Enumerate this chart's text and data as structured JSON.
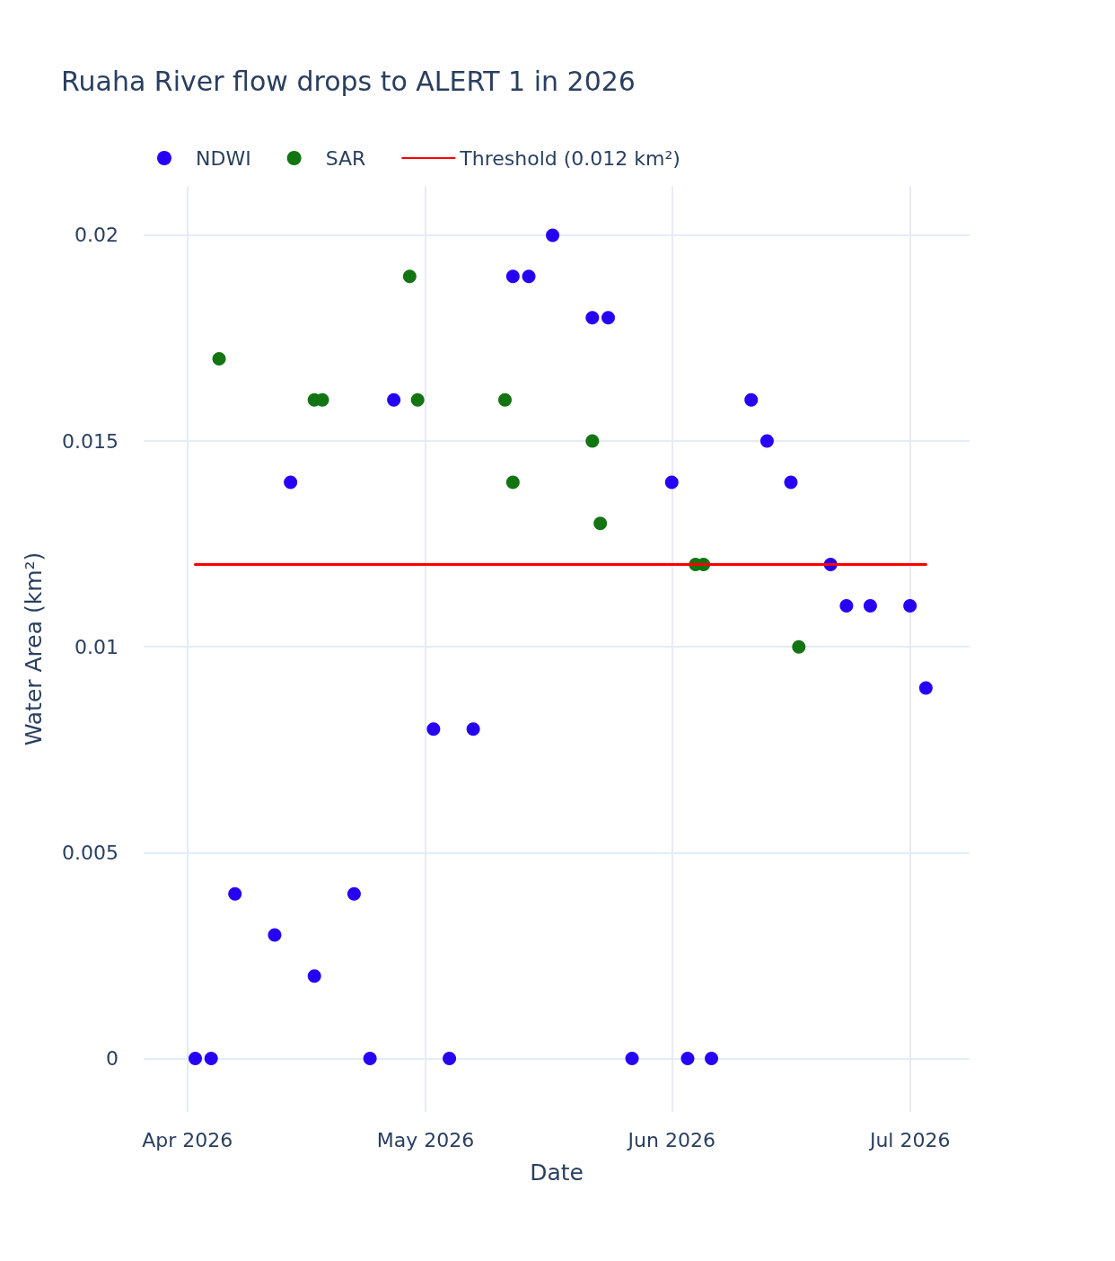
{
  "chart_data": {
    "type": "scatter",
    "title": "Ruaha River flow drops to ALERT 1 in 2026",
    "xlabel": "Date",
    "ylabel": "Water Area (km²)",
    "series": [
      {
        "name": "NDWI",
        "color": "#2600f5",
        "x": [
          "2026-04-02",
          "2026-04-04",
          "2026-04-07",
          "2026-04-12",
          "2026-04-14",
          "2026-04-17",
          "2026-04-22",
          "2026-04-24",
          "2026-04-27",
          "2026-05-02",
          "2026-05-04",
          "2026-05-07",
          "2026-05-12",
          "2026-05-14",
          "2026-05-17",
          "2026-05-22",
          "2026-05-24",
          "2026-05-27",
          "2026-06-01",
          "2026-06-03",
          "2026-06-06",
          "2026-06-11",
          "2026-06-13",
          "2026-06-16",
          "2026-06-21",
          "2026-06-23",
          "2026-06-26",
          "2026-07-01",
          "2026-07-03"
        ],
        "values": [
          0,
          0,
          0.004,
          0.003,
          0.014,
          0.002,
          0.004,
          0,
          0.016,
          0.008,
          0,
          0.008,
          0.019,
          0.019,
          0.02,
          0.018,
          0.018,
          0,
          0.014,
          0,
          0,
          0.016,
          0.015,
          0.014,
          0.012,
          0.011,
          0.011,
          0.011,
          0.009
        ]
      },
      {
        "name": "SAR",
        "color": "#127512",
        "x": [
          "2026-04-05",
          "2026-04-17",
          "2026-04-18",
          "2026-04-29",
          "2026-04-30",
          "2026-05-11",
          "2026-05-12",
          "2026-05-22",
          "2026-05-23",
          "2026-06-04",
          "2026-06-05",
          "2026-06-17"
        ],
        "values": [
          0.017,
          0.016,
          0.016,
          0.019,
          0.016,
          0.016,
          0.014,
          0.015,
          0.013,
          0.012,
          0.012,
          0.01
        ]
      },
      {
        "name": "Threshold (0.012 km²)",
        "color": "#ff0000",
        "type": "line",
        "marker": "none",
        "x": [
          "2026-04-02",
          "2026-07-03"
        ],
        "values": [
          0.012,
          0.012
        ]
      }
    ],
    "xlim": [
      "2026-03-26T12:00",
      "2026-07-08T12:00"
    ],
    "xticks": [
      {
        "value": "2026-04-01",
        "label": "Apr 2026"
      },
      {
        "value": "2026-05-01",
        "label": "May 2026"
      },
      {
        "value": "2026-06-01",
        "label": "Jun 2026"
      },
      {
        "value": "2026-07-01",
        "label": "Jul 2026"
      }
    ],
    "ylim": [
      -0.0013,
      0.0212
    ],
    "yticks": [
      0,
      0.005,
      0.01,
      0.015,
      0.02
    ],
    "grid": true,
    "legend": "top left",
    "marker": "circle"
  }
}
